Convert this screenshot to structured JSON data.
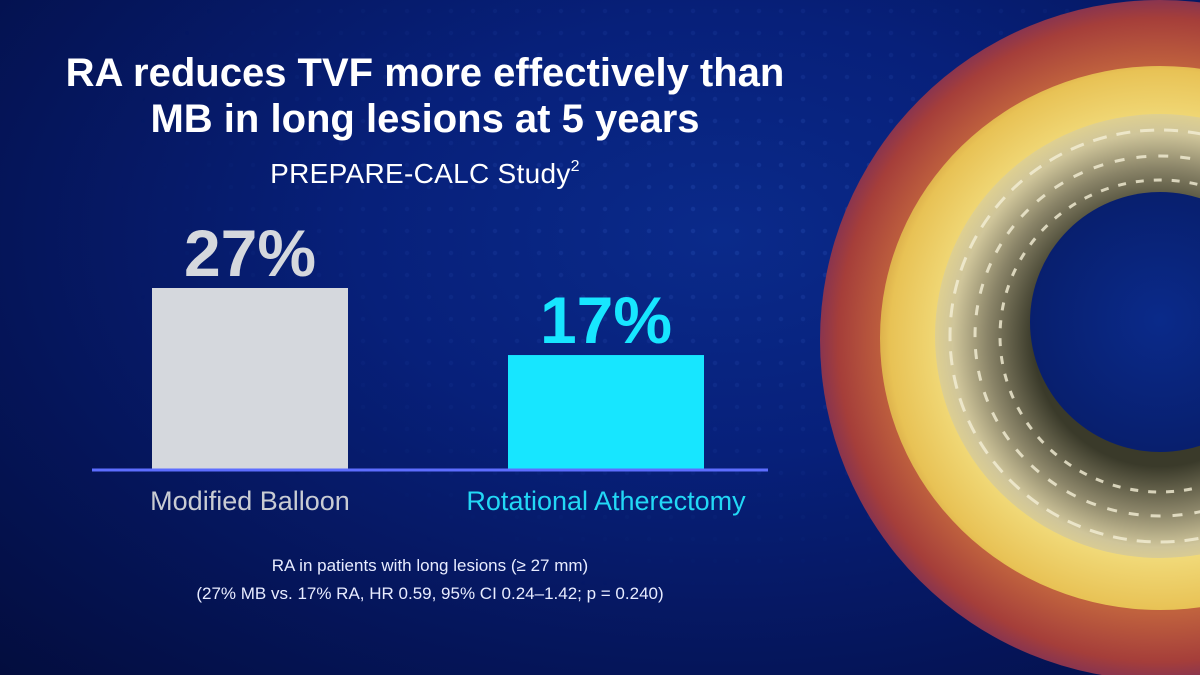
{
  "slide": {
    "title_line1": "RA reduces TVF more effectively than",
    "title_line2": "MB in long lesions at 5 years",
    "subtitle": "PREPARE-CALC Study",
    "subtitle_superscript": "2",
    "footnote_line1": "RA in patients with long lesions (≥ 27 mm)",
    "footnote_line2": "(27% MB vs. 17% RA, HR 0.59, 95% CI 0.24–1.42; p = 0.240)"
  },
  "colors": {
    "bar_mb": "#d5d8dd",
    "bar_ra": "#17e6ff",
    "value_mb": "#d5d8dd",
    "value_ra": "#17e6ff",
    "label_mb": "#c9ccd3",
    "label_ra": "#22d8f5",
    "baseline": "#5d6dff"
  },
  "chart_data": {
    "type": "bar",
    "categories": [
      "Modified Balloon",
      "Rotational Atherectomy"
    ],
    "values": [
      27,
      17
    ],
    "value_labels": [
      "27%",
      "17%"
    ],
    "unit": "%",
    "ylim": [
      0,
      27
    ],
    "grid": false,
    "legend": "none",
    "title": "RA reduces TVF more effectively than MB in long lesions at 5 years",
    "subtitle": "PREPARE-CALC Study",
    "xlabel": "",
    "ylabel": ""
  }
}
